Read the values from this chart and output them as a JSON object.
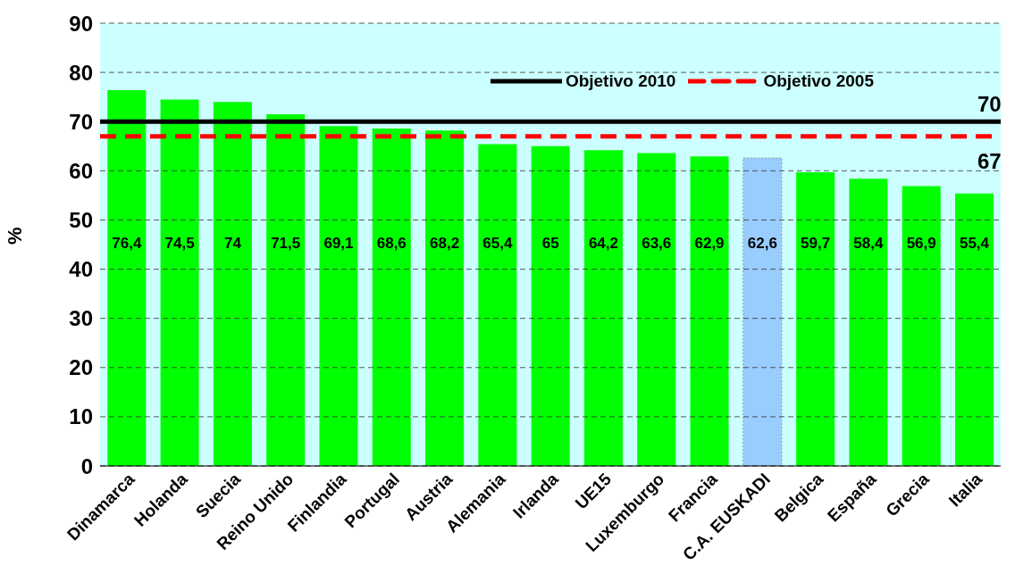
{
  "chart_data": {
    "type": "bar",
    "ylabel": "%",
    "categories": [
      "Dinamarca",
      "Holanda",
      "Suecia",
      "Reino Unido",
      "Finlandia",
      "Portugal",
      "Austria",
      "Alemania",
      "Irlanda",
      "UE15",
      "Luxemburgo",
      "Francia",
      "C.A. EUSKADI",
      "Belgica",
      "España",
      "Grecia",
      "Italia"
    ],
    "values": [
      76.4,
      74.5,
      74,
      71.5,
      69.1,
      68.6,
      68.2,
      65.4,
      65,
      64.2,
      63.6,
      62.9,
      62.6,
      59.7,
      58.4,
      56.9,
      55.4
    ],
    "value_labels": [
      "76,4",
      "74,5",
      "74",
      "71,5",
      "69,1",
      "68,6",
      "68,2",
      "65,4",
      "65",
      "64,2",
      "63,6",
      "62,9",
      "62,6",
      "59,7",
      "58,4",
      "56,9",
      "55,4"
    ],
    "colors": [
      "#00ff00",
      "#00ff00",
      "#00ff00",
      "#00ff00",
      "#00ff00",
      "#00ff00",
      "#00ff00",
      "#00ff00",
      "#00ff00",
      "#00ff00",
      "#00ff00",
      "#00ff00",
      "#99ccff",
      "#00ff00",
      "#00ff00",
      "#00ff00",
      "#00ff00"
    ],
    "annotations": [
      {
        "text": "70",
        "y": 70
      },
      {
        "text": "67",
        "y": 67
      }
    ],
    "bands": [
      {
        "axis": "y",
        "from": 0,
        "to": 90,
        "color": "#ccffff"
      }
    ],
    "ylim": [
      0,
      90
    ],
    "yticks": [
      0,
      10,
      20,
      30,
      40,
      50,
      60,
      70,
      80,
      90
    ],
    "grid": "y",
    "legend": "top right",
    "ref_lines": [
      {
        "axis": "y",
        "value": 70,
        "label": "Objetivo 2010",
        "color": "#000000",
        "line_style": "solid"
      },
      {
        "axis": "y",
        "value": 67,
        "label": "Objetivo 2005",
        "color": "#ff0000",
        "line_style": "dashed"
      }
    ]
  }
}
